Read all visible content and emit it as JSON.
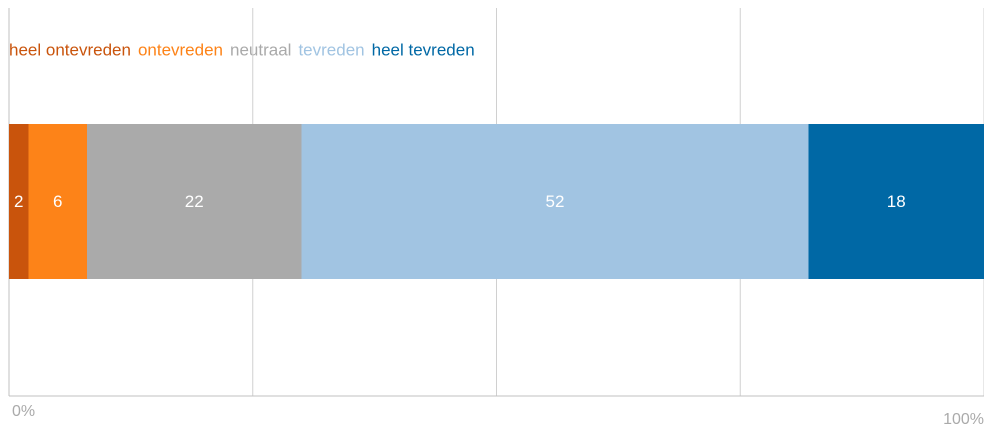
{
  "chart_data": {
    "type": "stacked-bar",
    "series": [
      {
        "name": "heel ontevreden",
        "color": "#c9540c",
        "values": [
          2
        ]
      },
      {
        "name": "ontevreden",
        "color": "#fd8318",
        "values": [
          6
        ]
      },
      {
        "name": "neutraal",
        "color": "#aaaaaa",
        "values": [
          22
        ]
      },
      {
        "name": "tevreden",
        "color": "#a1c4e2",
        "values": [
          52
        ]
      },
      {
        "name": "heel tevreden",
        "color": "#0068a5",
        "values": [
          18
        ]
      }
    ],
    "xlim": [
      0,
      100
    ],
    "xticks": [
      {
        "value": 0,
        "label": "0%"
      },
      {
        "value": 100,
        "label": "100%"
      }
    ],
    "xgrid": [
      25,
      50,
      75,
      100
    ],
    "legend": "top-left"
  }
}
